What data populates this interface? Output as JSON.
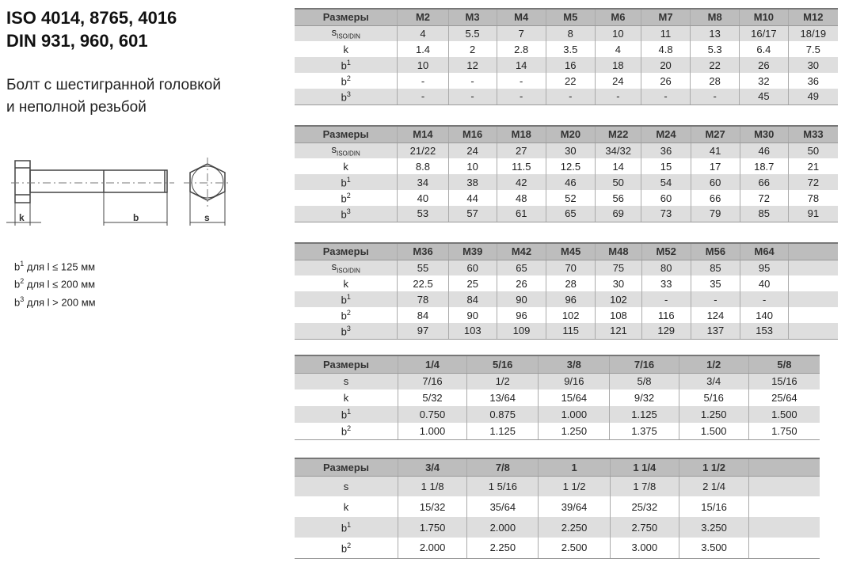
{
  "title_lines": [
    "ISO 4014, 8765, 4016",
    "DIN 931, 960, 601"
  ],
  "subtitle_lines": [
    "Болт с шестигранной головкой",
    "и неполной резьбой"
  ],
  "drawing_labels": {
    "k": "k",
    "b": "b",
    "s": "s"
  },
  "notes": [
    {
      "base": "b",
      "sup": "1",
      "text": " для l ≤ 125 мм"
    },
    {
      "base": "b",
      "sup": "2",
      "text": " для l ≤ 200 мм"
    },
    {
      "base": "b",
      "sup": "3",
      "text": " для l > 200 мм"
    }
  ],
  "tables": [
    {
      "header": [
        "Размеры",
        "M2",
        "M3",
        "M4",
        "M5",
        "M6",
        "M7",
        "M8",
        "M10",
        "M12"
      ],
      "rows": [
        {
          "label": "s",
          "sub": "ISO/DIN",
          "values": [
            "4",
            "5.5",
            "7",
            "8",
            "10",
            "11",
            "13",
            "16/17",
            "18/19"
          ]
        },
        {
          "label": "k",
          "values": [
            "1.4",
            "2",
            "2.8",
            "3.5",
            "4",
            "4.8",
            "5.3",
            "6.4",
            "7.5"
          ]
        },
        {
          "label": "b",
          "sup": "1",
          "values": [
            "10",
            "12",
            "14",
            "16",
            "18",
            "20",
            "22",
            "26",
            "30"
          ]
        },
        {
          "label": "b",
          "sup": "2",
          "values": [
            "-",
            "-",
            "-",
            "22",
            "24",
            "26",
            "28",
            "32",
            "36"
          ]
        },
        {
          "label": "b",
          "sup": "3",
          "values": [
            "-",
            "-",
            "-",
            "-",
            "-",
            "-",
            "-",
            "45",
            "49"
          ]
        }
      ]
    },
    {
      "header": [
        "Размеры",
        "M14",
        "M16",
        "M18",
        "M20",
        "M22",
        "M24",
        "M27",
        "M30",
        "M33"
      ],
      "rows": [
        {
          "label": "s",
          "sub": "ISO/DIN",
          "values": [
            "21/22",
            "24",
            "27",
            "30",
            "34/32",
            "36",
            "41",
            "46",
            "50"
          ]
        },
        {
          "label": "k",
          "values": [
            "8.8",
            "10",
            "11.5",
            "12.5",
            "14",
            "15",
            "17",
            "18.7",
            "21"
          ]
        },
        {
          "label": "b",
          "sup": "1",
          "values": [
            "34",
            "38",
            "42",
            "46",
            "50",
            "54",
            "60",
            "66",
            "72"
          ]
        },
        {
          "label": "b",
          "sup": "2",
          "values": [
            "40",
            "44",
            "48",
            "52",
            "56",
            "60",
            "66",
            "72",
            "78"
          ]
        },
        {
          "label": "b",
          "sup": "3",
          "values": [
            "53",
            "57",
            "61",
            "65",
            "69",
            "73",
            "79",
            "85",
            "91"
          ]
        }
      ]
    },
    {
      "header": [
        "Размеры",
        "M36",
        "M39",
        "M42",
        "M45",
        "M48",
        "M52",
        "M56",
        "M64",
        ""
      ],
      "rows": [
        {
          "label": "s",
          "sub": "ISO/DIN",
          "values": [
            "55",
            "60",
            "65",
            "70",
            "75",
            "80",
            "85",
            "95",
            ""
          ]
        },
        {
          "label": "k",
          "values": [
            "22.5",
            "25",
            "26",
            "28",
            "30",
            "33",
            "35",
            "40",
            ""
          ]
        },
        {
          "label": "b",
          "sup": "1",
          "values": [
            "78",
            "84",
            "90",
            "96",
            "102",
            "-",
            "-",
            "-",
            ""
          ]
        },
        {
          "label": "b",
          "sup": "2",
          "values": [
            "84",
            "90",
            "96",
            "102",
            "108",
            "116",
            "124",
            "140",
            ""
          ]
        },
        {
          "label": "b",
          "sup": "3",
          "values": [
            "97",
            "103",
            "109",
            "115",
            "121",
            "129",
            "137",
            "153",
            ""
          ]
        }
      ]
    },
    {
      "header": [
        "Размеры",
        "1/4",
        "5/16",
        "3/8",
        "7/16",
        "1/2",
        "5/8"
      ],
      "rows": [
        {
          "label": "s",
          "values": [
            "7/16",
            "1/2",
            "9/16",
            "5/8",
            "3/4",
            "15/16"
          ]
        },
        {
          "label": "k",
          "values": [
            "5/32",
            "13/64",
            "15/64",
            "9/32",
            "5/16",
            "25/64"
          ]
        },
        {
          "label": "b",
          "sup": "1",
          "values": [
            "0.750",
            "0.875",
            "1.000",
            "1.125",
            "1.250",
            "1.500"
          ]
        },
        {
          "label": "b",
          "sup": "2",
          "values": [
            "1.000",
            "1.125",
            "1.250",
            "1.375",
            "1.500",
            "1.750"
          ]
        }
      ]
    },
    {
      "header": [
        "Размеры",
        "3/4",
        "7/8",
        "1",
        "1 1/4",
        "1 1/2",
        ""
      ],
      "rows": [
        {
          "label": "s",
          "values": [
            "1 1/8",
            "1 5/16",
            "1 1/2",
            "1 7/8",
            "2 1/4",
            ""
          ]
        },
        {
          "label": "k",
          "values": [
            "15/32",
            "35/64",
            "39/64",
            "25/32",
            "15/16",
            ""
          ]
        },
        {
          "label": "b",
          "sup": "1",
          "values": [
            "1.750",
            "2.000",
            "2.250",
            "2.750",
            "3.250",
            ""
          ]
        },
        {
          "label": "b",
          "sup": "2",
          "values": [
            "2.000",
            "2.250",
            "2.500",
            "3.000",
            "3.500",
            ""
          ]
        }
      ]
    }
  ]
}
